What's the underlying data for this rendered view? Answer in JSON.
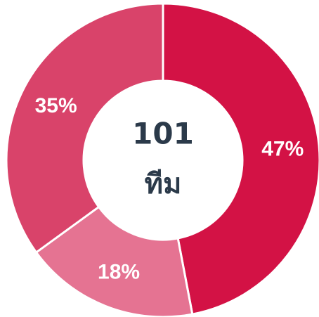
{
  "chart_data": {
    "type": "donut",
    "values": [
      47,
      18,
      35
    ],
    "value_labels": [
      "47%",
      "18%",
      "35%"
    ],
    "colors": [
      "#d31245",
      "#e57392",
      "#d9436a"
    ],
    "center_title": "101",
    "center_subtitle": "ทีม"
  }
}
